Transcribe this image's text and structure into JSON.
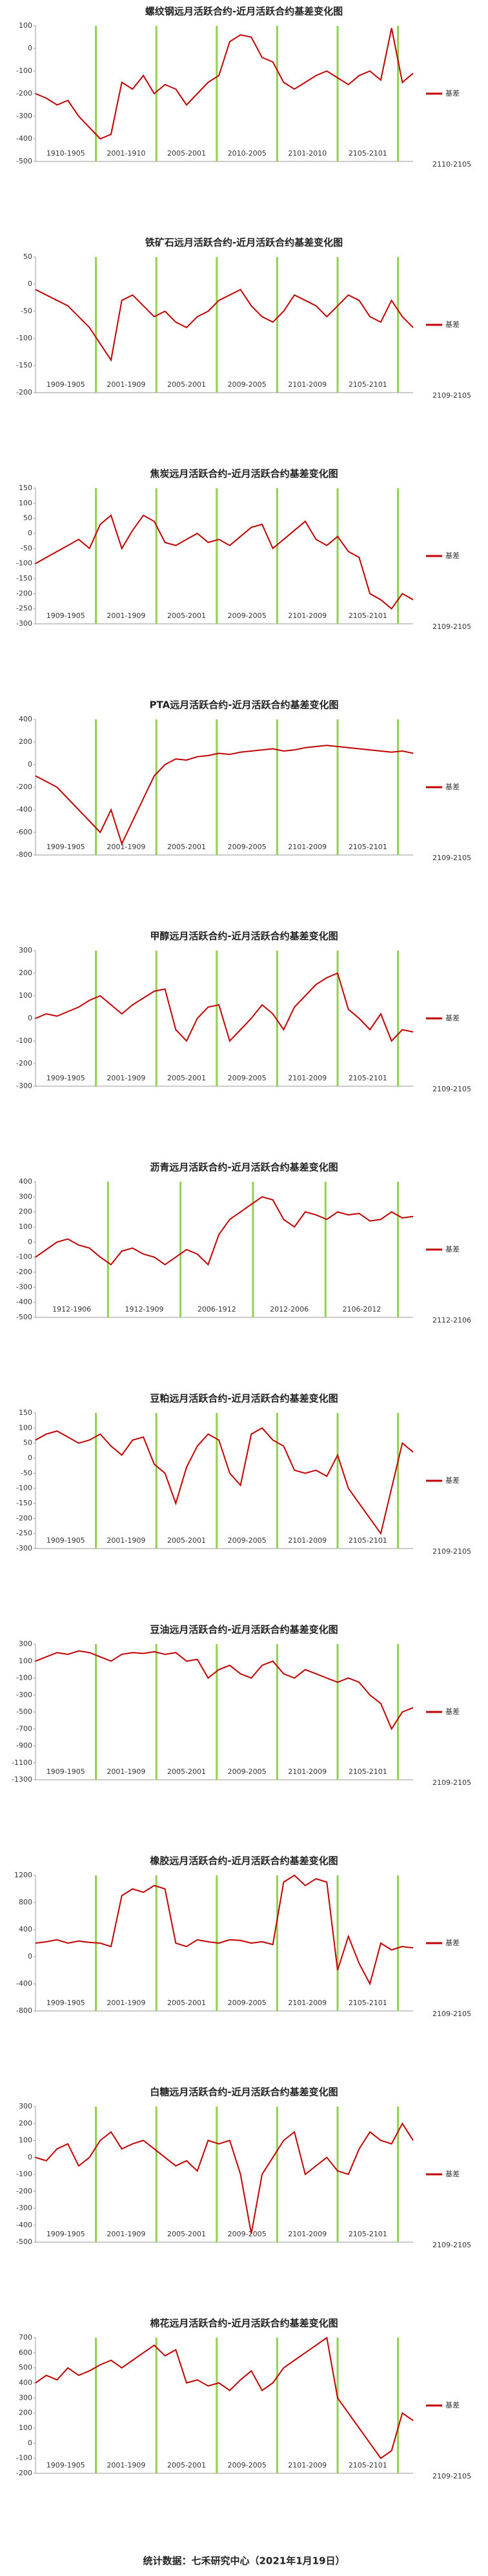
{
  "chart_data": [
    {
      "type": "line",
      "title": "螺纹钢远月活跃合约-近月活跃合约基差变化图",
      "series": [
        {
          "name": "基差",
          "color": "#c00000",
          "values": [
            -200,
            -220,
            -250,
            -230,
            -300,
            -350,
            -400,
            -380,
            -150,
            -180,
            -120,
            -200,
            -160,
            -180,
            -250,
            -200,
            -150,
            -120,
            30,
            60,
            50,
            -40,
            -60,
            -150,
            -180,
            -150,
            -120,
            -100,
            -130,
            -160,
            -120,
            -100,
            -140,
            90,
            -150,
            -110
          ]
        }
      ],
      "ylim": [
        -500,
        100
      ],
      "yticks": [
        100,
        0,
        -100,
        -200,
        -300,
        -400,
        -500
      ],
      "period_labels": [
        "1910-1905",
        "2001-1910",
        "2005-2001",
        "2010-2005",
        "2101-2010",
        "2105-2101",
        "2110-2105"
      ]
    },
    {
      "type": "line",
      "title": "铁矿石远月活跃合约-近月活跃合约基差变化图",
      "series": [
        {
          "name": "基差",
          "color": "#c00000",
          "values": [
            -10,
            -20,
            -30,
            -40,
            -60,
            -80,
            -110,
            -140,
            -30,
            -20,
            -40,
            -60,
            -50,
            -70,
            -80,
            -60,
            -50,
            -30,
            -20,
            -10,
            -40,
            -60,
            -70,
            -50,
            -20,
            -30,
            -40,
            -60,
            -40,
            -20,
            -30,
            -60,
            -70,
            -30,
            -60,
            -80
          ]
        }
      ],
      "ylim": [
        -200,
        50
      ],
      "yticks": [
        50,
        0,
        -50,
        -100,
        -150,
        -200
      ],
      "period_labels": [
        "1909-1905",
        "2001-1909",
        "2005-2001",
        "2009-2005",
        "2101-2009",
        "2105-2101",
        "2109-2105"
      ]
    },
    {
      "type": "line",
      "title": "焦炭远月活跃合约-近月活跃合约基差变化图",
      "series": [
        {
          "name": "基差",
          "color": "#c00000",
          "values": [
            -100,
            -80,
            -60,
            -40,
            -20,
            -50,
            30,
            60,
            -50,
            10,
            60,
            40,
            -30,
            -40,
            -20,
            0,
            -30,
            -20,
            -40,
            -10,
            20,
            30,
            -50,
            -20,
            10,
            40,
            -20,
            -40,
            -10,
            -60,
            -80,
            -200,
            -220,
            -250,
            -200,
            -220
          ]
        }
      ],
      "ylim": [
        -300,
        150
      ],
      "yticks": [
        150,
        100,
        50,
        0,
        -50,
        -100,
        -150,
        -200,
        -250,
        -300
      ],
      "period_labels": [
        "1909-1905",
        "2001-1909",
        "2005-2001",
        "2009-2005",
        "2101-2009",
        "2105-2101",
        "2109-2105"
      ]
    },
    {
      "type": "line",
      "title": "PTA远月活跃合约-近月活跃合约基差变化图",
      "series": [
        {
          "name": "基差",
          "color": "#c00000",
          "values": [
            -100,
            -150,
            -200,
            -300,
            -400,
            -500,
            -600,
            -400,
            -700,
            -500,
            -300,
            -100,
            0,
            50,
            40,
            70,
            80,
            100,
            90,
            110,
            120,
            130,
            140,
            120,
            130,
            150,
            160,
            170,
            160,
            150,
            140,
            130,
            120,
            110,
            120,
            100
          ]
        }
      ],
      "ylim": [
        -800,
        400
      ],
      "yticks": [
        400,
        200,
        0,
        -200,
        -400,
        -600,
        -800
      ],
      "period_labels": [
        "1909-1905",
        "2001-1909",
        "2005-2001",
        "2009-2005",
        "2101-2009",
        "2105-2101",
        "2109-2105"
      ]
    },
    {
      "type": "line",
      "title": "甲醇远月活跃合约-近月活跃合约基差变化图",
      "series": [
        {
          "name": "基差",
          "color": "#c00000",
          "values": [
            0,
            20,
            10,
            30,
            50,
            80,
            100,
            60,
            20,
            60,
            90,
            120,
            130,
            -50,
            -100,
            0,
            50,
            60,
            -100,
            -50,
            0,
            60,
            20,
            -50,
            50,
            100,
            150,
            180,
            200,
            40,
            0,
            -50,
            20,
            -100,
            -50,
            -60
          ]
        }
      ],
      "ylim": [
        -300,
        300
      ],
      "yticks": [
        300,
        200,
        100,
        0,
        -100,
        -200,
        -300
      ],
      "period_labels": [
        "1909-1905",
        "2001-1909",
        "2005-2001",
        "2009-2005",
        "2101-2009",
        "2105-2101",
        "2109-2105"
      ]
    },
    {
      "type": "line",
      "title": "沥青远月活跃合约-近月活跃合约基差变化图",
      "series": [
        {
          "name": "基差",
          "color": "#c00000",
          "values": [
            -100,
            -50,
            0,
            20,
            -20,
            -40,
            -100,
            -150,
            -60,
            -40,
            -80,
            -100,
            -150,
            -100,
            -50,
            -80,
            -150,
            50,
            150,
            200,
            250,
            300,
            280,
            150,
            100,
            200,
            180,
            150,
            200,
            180,
            190,
            140,
            150,
            200,
            160,
            170
          ]
        }
      ],
      "ylim": [
        -500,
        400
      ],
      "yticks": [
        400,
        300,
        200,
        100,
        0,
        -100,
        -200,
        -300,
        -400,
        -500
      ],
      "period_labels": [
        "1912-1906",
        "1912-1909",
        "2006-1912",
        "2012-2006",
        "2106-2012",
        "2112-2106"
      ]
    },
    {
      "type": "line",
      "title": "豆粕远月活跃合约-近月活跃合约基差变化图",
      "series": [
        {
          "name": "基差",
          "color": "#c00000",
          "values": [
            60,
            80,
            90,
            70,
            50,
            60,
            80,
            40,
            10,
            60,
            70,
            -20,
            -50,
            -150,
            -30,
            40,
            80,
            60,
            -50,
            -90,
            80,
            100,
            60,
            40,
            -40,
            -50,
            -40,
            -60,
            10,
            -100,
            -150,
            -200,
            -250,
            -100,
            50,
            20
          ]
        }
      ],
      "ylim": [
        -300,
        150
      ],
      "yticks": [
        150,
        100,
        50,
        0,
        -50,
        -100,
        -150,
        -200,
        -250,
        -300
      ],
      "period_labels": [
        "1909-1905",
        "2001-1909",
        "2005-2001",
        "2009-2005",
        "2101-2009",
        "2105-2101",
        "2109-2105"
      ]
    },
    {
      "type": "line",
      "title": "豆油远月活跃合约-近月活跃合约基差变化图",
      "series": [
        {
          "name": "基差",
          "color": "#c00000",
          "values": [
            100,
            150,
            200,
            180,
            220,
            200,
            150,
            100,
            180,
            200,
            190,
            210,
            180,
            200,
            100,
            120,
            -100,
            0,
            50,
            -50,
            -100,
            50,
            100,
            -50,
            -100,
            0,
            -50,
            -100,
            -150,
            -100,
            -150,
            -300,
            -400,
            -700,
            -500,
            -450
          ]
        }
      ],
      "ylim": [
        -1300,
        300
      ],
      "yticks": [
        300,
        100,
        -100,
        -300,
        -500,
        -700,
        -900,
        -1100,
        -1300
      ],
      "period_labels": [
        "1909-1905",
        "2001-1909",
        "2005-2001",
        "2009-2005",
        "2101-2009",
        "2105-2101",
        "2109-2105"
      ]
    },
    {
      "type": "line",
      "title": "橡胶远月活跃合约-近月活跃合约基差变化图",
      "series": [
        {
          "name": "基差",
          "color": "#c00000",
          "values": [
            200,
            220,
            250,
            200,
            230,
            210,
            200,
            150,
            900,
            1000,
            950,
            1050,
            1000,
            200,
            150,
            250,
            220,
            200,
            250,
            240,
            200,
            220,
            180,
            1100,
            1200,
            1050,
            1150,
            1100,
            -200,
            300,
            -100,
            -400,
            200,
            100,
            150,
            130
          ]
        }
      ],
      "ylim": [
        -800,
        1200
      ],
      "yticks": [
        1200,
        800,
        400,
        0,
        -400,
        -800
      ],
      "period_labels": [
        "1909-1905",
        "2001-1909",
        "2005-2001",
        "2009-2005",
        "2101-2009",
        "2105-2101",
        "2109-2105"
      ]
    },
    {
      "type": "line",
      "title": "白糖远月活跃合约-近月活跃合约基差变化图",
      "series": [
        {
          "name": "基差",
          "color": "#c00000",
          "values": [
            0,
            -20,
            50,
            80,
            -50,
            0,
            100,
            150,
            50,
            80,
            100,
            50,
            0,
            -50,
            -20,
            -80,
            100,
            80,
            100,
            -100,
            -450,
            -100,
            0,
            100,
            150,
            -100,
            -50,
            0,
            -80,
            -100,
            50,
            150,
            100,
            80,
            200,
            100
          ]
        }
      ],
      "ylim": [
        -500,
        300
      ],
      "yticks": [
        300,
        200,
        100,
        0,
        -100,
        -200,
        -300,
        -400,
        -500
      ],
      "period_labels": [
        "1909-1905",
        "2001-1909",
        "2005-2001",
        "2009-2005",
        "2101-2009",
        "2105-2101",
        "2109-2105"
      ]
    },
    {
      "type": "line",
      "title": "棉花远月活跃合约-近月活跃合约基差变化图",
      "series": [
        {
          "name": "基差",
          "color": "#c00000",
          "values": [
            400,
            450,
            420,
            500,
            450,
            480,
            520,
            550,
            500,
            550,
            600,
            650,
            580,
            620,
            400,
            420,
            380,
            400,
            350,
            420,
            480,
            350,
            400,
            500,
            550,
            600,
            650,
            700,
            300,
            200,
            100,
            0,
            -100,
            -50,
            200,
            150
          ]
        }
      ],
      "ylim": [
        -200,
        700
      ],
      "yticks": [
        700,
        600,
        500,
        400,
        300,
        200,
        100,
        0,
        -100,
        -200
      ],
      "period_labels": [
        "1909-1905",
        "2001-1909",
        "2005-2001",
        "2009-2005",
        "2101-2009",
        "2105-2101",
        "2109-2105"
      ]
    }
  ],
  "footer": "统计数据：七禾研究中心（2021年1月19日）"
}
